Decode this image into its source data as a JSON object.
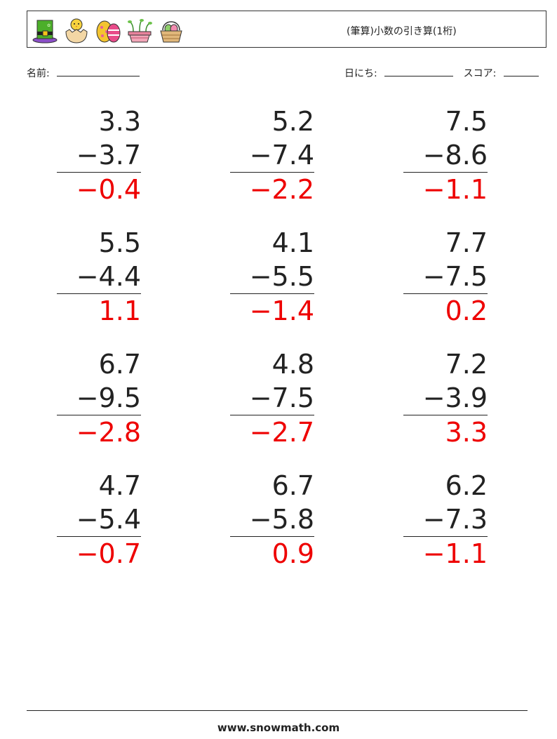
{
  "header": {
    "title": "(筆算)小数の引き算(1桁)",
    "icons": [
      "leprechaun-hat-icon",
      "hatching-chick-icon",
      "easter-eggs-icon",
      "sprout-planter-icon",
      "egg-basket-icon"
    ]
  },
  "fields": {
    "name_label": "名前:",
    "date_label": "日にち:",
    "score_label": "スコア:"
  },
  "problems": [
    {
      "a": "3.3",
      "b": "−3.7",
      "answer": "−0.4"
    },
    {
      "a": "5.2",
      "b": "−7.4",
      "answer": "−2.2"
    },
    {
      "a": "7.5",
      "b": "−8.6",
      "answer": "−1.1"
    },
    {
      "a": "5.5",
      "b": "−4.4",
      "answer": "1.1"
    },
    {
      "a": "4.1",
      "b": "−5.5",
      "answer": "−1.4"
    },
    {
      "a": "7.7",
      "b": "−7.5",
      "answer": "0.2"
    },
    {
      "a": "6.7",
      "b": "−9.5",
      "answer": "−2.8"
    },
    {
      "a": "4.8",
      "b": "−7.5",
      "answer": "−2.7"
    },
    {
      "a": "7.2",
      "b": "−3.9",
      "answer": "3.3"
    },
    {
      "a": "4.7",
      "b": "−5.4",
      "answer": "−0.7"
    },
    {
      "a": "6.7",
      "b": "−5.8",
      "answer": "0.9"
    },
    {
      "a": "6.2",
      "b": "−7.3",
      "answer": "−1.1"
    }
  ],
  "colors": {
    "answer": "#ee0000",
    "text": "#222222"
  },
  "footer": {
    "site": "www.snowmath.com"
  }
}
